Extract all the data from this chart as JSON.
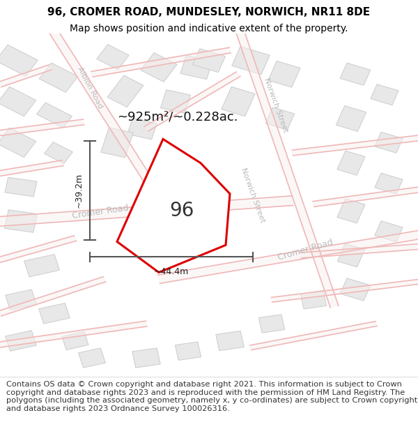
{
  "title_line1": "96, CROMER ROAD, MUNDESLEY, NORWICH, NR11 8DE",
  "title_line2": "Map shows position and indicative extent of the property.",
  "footer_text": "Contains OS data © Crown copyright and database right 2021. This information is subject to Crown copyright and database rights 2023 and is reproduced with the permission of HM Land Registry. The polygons (including the associated geometry, namely x, y co-ordinates) are subject to Crown copyright and database rights 2023 Ordnance Survey 100026316.",
  "bg_color": "#ffffff",
  "map_bg_color": "#ffffff",
  "road_line_color": "#f0b8b8",
  "road_line_lw": 1.2,
  "building_face_color": "#e8e8e8",
  "building_edge_color": "#cccccc",
  "plot_edge_color": "#dd0000",
  "plot_fill_color": "#ffffff",
  "dim_color": "#555555",
  "road_label_color": "#bbbbbb",
  "plot_label": "96",
  "area_label": "~925m²/~0.228ac.",
  "title_fontsize": 11,
  "subtitle_fontsize": 10,
  "footer_fontsize": 8.2
}
